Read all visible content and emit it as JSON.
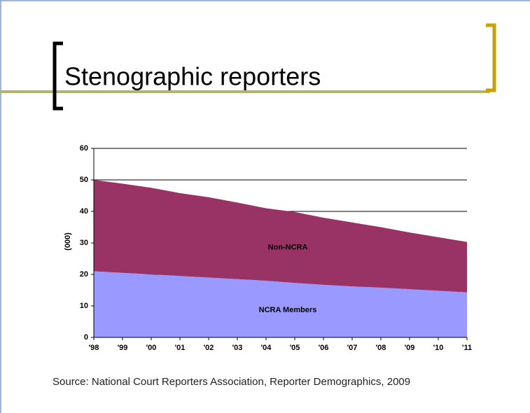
{
  "title": "Stenographic reporters",
  "source": "Source: National Court Reporters Association, Reporter Demographics, 2009",
  "chart_data": {
    "type": "stacked_area",
    "ylabel": "(000)",
    "categories": [
      "'98",
      "'99",
      "'00",
      "'01",
      "'02",
      "'03",
      "'04",
      "'05",
      "'06",
      "'07",
      "'08",
      "'09",
      "'10",
      "'11"
    ],
    "series": [
      {
        "name": "NCRA Members",
        "color": "#9999ff",
        "values": [
          21,
          20.5,
          20,
          19.5,
          19,
          18.5,
          18,
          17.3,
          16.7,
          16.2,
          15.8,
          15.3,
          14.8,
          14.3
        ]
      },
      {
        "name": "Non-NCRA",
        "color": "#993366",
        "values": [
          29,
          28.3,
          27.5,
          26.3,
          25.5,
          24.3,
          23,
          22.5,
          21.3,
          20.3,
          19.2,
          18,
          17,
          16
        ]
      }
    ],
    "ylim": [
      0,
      60
    ],
    "yticks": [
      0,
      10,
      20,
      30,
      40,
      50,
      60
    ],
    "grid": true
  }
}
